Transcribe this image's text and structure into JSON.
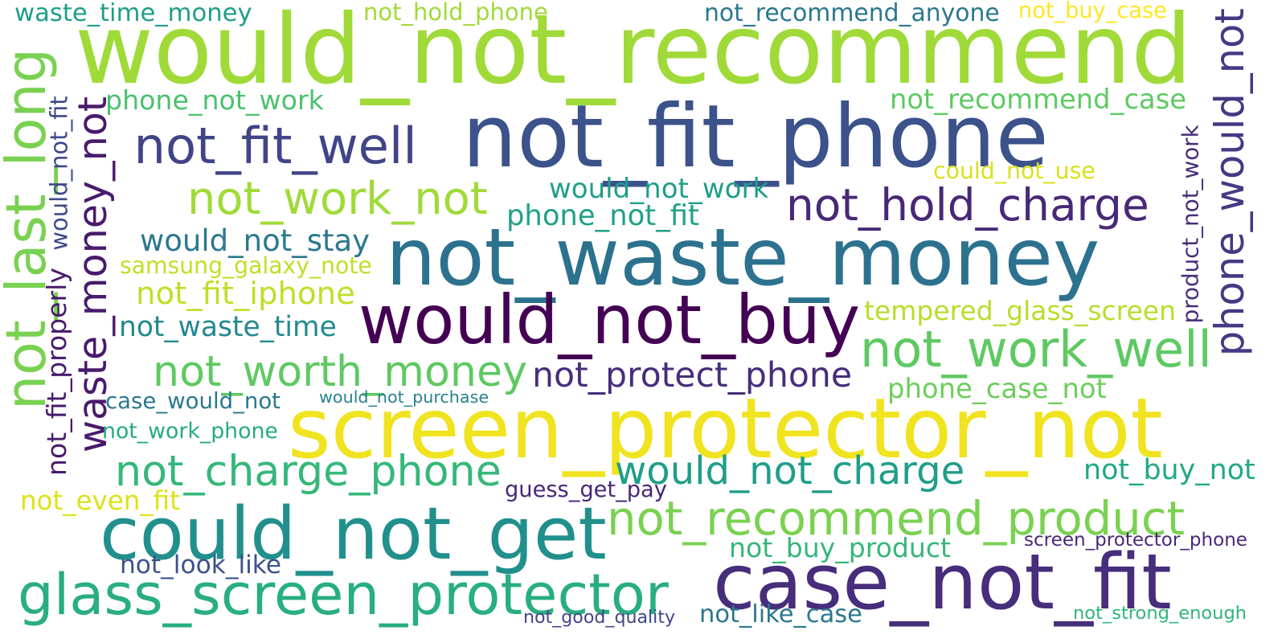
{
  "phrases": [
    {
      "text": "would_not_recommend",
      "color": "#a0da39"
    },
    {
      "text": "not_fit_phone",
      "color": "#3b528b"
    },
    {
      "text": "not_waste_money",
      "color": "#2c728e"
    },
    {
      "text": "would_not_buy",
      "color": "#440154"
    },
    {
      "text": "screen_protector_not",
      "color": "#f0e31f"
    },
    {
      "text": "could_not_get",
      "color": "#21908d"
    },
    {
      "text": "case_not_fit",
      "color": "#472d7b"
    },
    {
      "text": "glass_screen_protector",
      "color": "#28ae80"
    },
    {
      "text": "not_last_long",
      "color": "#7ad151"
    },
    {
      "text": "waste_money_not",
      "color": "#481a6c"
    },
    {
      "text": "phone_would_not",
      "color": "#443983"
    },
    {
      "text": "not_recommend_product",
      "color": "#7ad151"
    },
    {
      "text": "not_worth_money",
      "color": "#5ec962"
    },
    {
      "text": "not_work_well",
      "color": "#5ec962"
    },
    {
      "text": "not_charge_phone",
      "color": "#35b779"
    },
    {
      "text": "would_not_charge",
      "color": "#1f9e89"
    },
    {
      "text": "not_work_not",
      "color": "#a0da39"
    },
    {
      "text": "not_fit_well",
      "color": "#414487"
    },
    {
      "text": "not_hold_charge",
      "color": "#482878"
    },
    {
      "text": "not_protect_phone",
      "color": "#472d7b"
    },
    {
      "text": "would_not_stay",
      "color": "#2a788e"
    },
    {
      "text": "not_fit_iphone",
      "color": "#bddf26"
    },
    {
      "text": "not_waste_time",
      "color": "#23898e"
    },
    {
      "text": "would_not_work",
      "color": "#1f9e89"
    },
    {
      "text": "phone_not_fit",
      "color": "#1fa187"
    },
    {
      "text": "samsung_galaxy_note",
      "color": "#c0df25"
    },
    {
      "text": "phone_not_work",
      "color": "#4ac16d"
    },
    {
      "text": "not_recommend_case",
      "color": "#5ec962"
    },
    {
      "text": "tempered_glass_screen",
      "color": "#b5de2b"
    },
    {
      "text": "phone_case_not",
      "color": "#6ccd5a"
    },
    {
      "text": "not_buy_not",
      "color": "#22a884"
    },
    {
      "text": "not_buy_product",
      "color": "#35b779"
    },
    {
      "text": "waste_time_money",
      "color": "#1f9e89"
    },
    {
      "text": "not_hold_phone",
      "color": "#a0da39"
    },
    {
      "text": "not_recommend_anyone",
      "color": "#2a788e"
    },
    {
      "text": "not_buy_case",
      "color": "#fde725"
    },
    {
      "text": "could_not_use",
      "color": "#d8e219"
    },
    {
      "text": "product_not_work",
      "color": "#472d7b"
    },
    {
      "text": "not_fit_properly",
      "color": "#481a6c"
    },
    {
      "text": "would_not_fit",
      "color": "#3e4a89"
    },
    {
      "text": "case_would_not",
      "color": "#2a788e"
    },
    {
      "text": "would_not_purchase",
      "color": "#26828e"
    },
    {
      "text": "not_work_phone",
      "color": "#25ab82"
    },
    {
      "text": "not_even_fit",
      "color": "#dde318"
    },
    {
      "text": "guess_get_pay",
      "color": "#482878"
    },
    {
      "text": "not_look_like",
      "color": "#3b528b"
    },
    {
      "text": "screen_protector_phone",
      "color": "#482878"
    },
    {
      "text": "not_good_quality",
      "color": "#404688"
    },
    {
      "text": "not_like_case",
      "color": "#2a788e"
    },
    {
      "text": "not_strong_enough",
      "color": "#2fb47c"
    }
  ]
}
